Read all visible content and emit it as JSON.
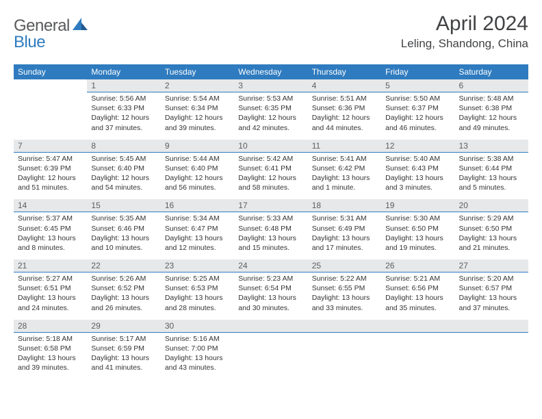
{
  "logo": {
    "general": "General",
    "blue": "Blue"
  },
  "title": "April 2024",
  "location": "Leling, Shandong, China",
  "dow": [
    "Sunday",
    "Monday",
    "Tuesday",
    "Wednesday",
    "Thursday",
    "Friday",
    "Saturday"
  ],
  "colors": {
    "header_bg": "#2f7bbf",
    "header_text": "#ffffff",
    "daybar_bg": "#e7e8e9",
    "daybar_border": "#2f7bbf",
    "body_text": "#333333",
    "title_text": "#414244",
    "logo_gray": "#58595b",
    "logo_blue": "#2f7bbf"
  },
  "weeks": [
    [
      null,
      {
        "n": "1",
        "sr": "Sunrise: 5:56 AM",
        "ss": "Sunset: 6:33 PM",
        "d1": "Daylight: 12 hours",
        "d2": "and 37 minutes."
      },
      {
        "n": "2",
        "sr": "Sunrise: 5:54 AM",
        "ss": "Sunset: 6:34 PM",
        "d1": "Daylight: 12 hours",
        "d2": "and 39 minutes."
      },
      {
        "n": "3",
        "sr": "Sunrise: 5:53 AM",
        "ss": "Sunset: 6:35 PM",
        "d1": "Daylight: 12 hours",
        "d2": "and 42 minutes."
      },
      {
        "n": "4",
        "sr": "Sunrise: 5:51 AM",
        "ss": "Sunset: 6:36 PM",
        "d1": "Daylight: 12 hours",
        "d2": "and 44 minutes."
      },
      {
        "n": "5",
        "sr": "Sunrise: 5:50 AM",
        "ss": "Sunset: 6:37 PM",
        "d1": "Daylight: 12 hours",
        "d2": "and 46 minutes."
      },
      {
        "n": "6",
        "sr": "Sunrise: 5:48 AM",
        "ss": "Sunset: 6:38 PM",
        "d1": "Daylight: 12 hours",
        "d2": "and 49 minutes."
      }
    ],
    [
      {
        "n": "7",
        "sr": "Sunrise: 5:47 AM",
        "ss": "Sunset: 6:39 PM",
        "d1": "Daylight: 12 hours",
        "d2": "and 51 minutes."
      },
      {
        "n": "8",
        "sr": "Sunrise: 5:45 AM",
        "ss": "Sunset: 6:40 PM",
        "d1": "Daylight: 12 hours",
        "d2": "and 54 minutes."
      },
      {
        "n": "9",
        "sr": "Sunrise: 5:44 AM",
        "ss": "Sunset: 6:40 PM",
        "d1": "Daylight: 12 hours",
        "d2": "and 56 minutes."
      },
      {
        "n": "10",
        "sr": "Sunrise: 5:42 AM",
        "ss": "Sunset: 6:41 PM",
        "d1": "Daylight: 12 hours",
        "d2": "and 58 minutes."
      },
      {
        "n": "11",
        "sr": "Sunrise: 5:41 AM",
        "ss": "Sunset: 6:42 PM",
        "d1": "Daylight: 13 hours",
        "d2": "and 1 minute."
      },
      {
        "n": "12",
        "sr": "Sunrise: 5:40 AM",
        "ss": "Sunset: 6:43 PM",
        "d1": "Daylight: 13 hours",
        "d2": "and 3 minutes."
      },
      {
        "n": "13",
        "sr": "Sunrise: 5:38 AM",
        "ss": "Sunset: 6:44 PM",
        "d1": "Daylight: 13 hours",
        "d2": "and 5 minutes."
      }
    ],
    [
      {
        "n": "14",
        "sr": "Sunrise: 5:37 AM",
        "ss": "Sunset: 6:45 PM",
        "d1": "Daylight: 13 hours",
        "d2": "and 8 minutes."
      },
      {
        "n": "15",
        "sr": "Sunrise: 5:35 AM",
        "ss": "Sunset: 6:46 PM",
        "d1": "Daylight: 13 hours",
        "d2": "and 10 minutes."
      },
      {
        "n": "16",
        "sr": "Sunrise: 5:34 AM",
        "ss": "Sunset: 6:47 PM",
        "d1": "Daylight: 13 hours",
        "d2": "and 12 minutes."
      },
      {
        "n": "17",
        "sr": "Sunrise: 5:33 AM",
        "ss": "Sunset: 6:48 PM",
        "d1": "Daylight: 13 hours",
        "d2": "and 15 minutes."
      },
      {
        "n": "18",
        "sr": "Sunrise: 5:31 AM",
        "ss": "Sunset: 6:49 PM",
        "d1": "Daylight: 13 hours",
        "d2": "and 17 minutes."
      },
      {
        "n": "19",
        "sr": "Sunrise: 5:30 AM",
        "ss": "Sunset: 6:50 PM",
        "d1": "Daylight: 13 hours",
        "d2": "and 19 minutes."
      },
      {
        "n": "20",
        "sr": "Sunrise: 5:29 AM",
        "ss": "Sunset: 6:50 PM",
        "d1": "Daylight: 13 hours",
        "d2": "and 21 minutes."
      }
    ],
    [
      {
        "n": "21",
        "sr": "Sunrise: 5:27 AM",
        "ss": "Sunset: 6:51 PM",
        "d1": "Daylight: 13 hours",
        "d2": "and 24 minutes."
      },
      {
        "n": "22",
        "sr": "Sunrise: 5:26 AM",
        "ss": "Sunset: 6:52 PM",
        "d1": "Daylight: 13 hours",
        "d2": "and 26 minutes."
      },
      {
        "n": "23",
        "sr": "Sunrise: 5:25 AM",
        "ss": "Sunset: 6:53 PM",
        "d1": "Daylight: 13 hours",
        "d2": "and 28 minutes."
      },
      {
        "n": "24",
        "sr": "Sunrise: 5:23 AM",
        "ss": "Sunset: 6:54 PM",
        "d1": "Daylight: 13 hours",
        "d2": "and 30 minutes."
      },
      {
        "n": "25",
        "sr": "Sunrise: 5:22 AM",
        "ss": "Sunset: 6:55 PM",
        "d1": "Daylight: 13 hours",
        "d2": "and 33 minutes."
      },
      {
        "n": "26",
        "sr": "Sunrise: 5:21 AM",
        "ss": "Sunset: 6:56 PM",
        "d1": "Daylight: 13 hours",
        "d2": "and 35 minutes."
      },
      {
        "n": "27",
        "sr": "Sunrise: 5:20 AM",
        "ss": "Sunset: 6:57 PM",
        "d1": "Daylight: 13 hours",
        "d2": "and 37 minutes."
      }
    ],
    [
      {
        "n": "28",
        "sr": "Sunrise: 5:18 AM",
        "ss": "Sunset: 6:58 PM",
        "d1": "Daylight: 13 hours",
        "d2": "and 39 minutes."
      },
      {
        "n": "29",
        "sr": "Sunrise: 5:17 AM",
        "ss": "Sunset: 6:59 PM",
        "d1": "Daylight: 13 hours",
        "d2": "and 41 minutes."
      },
      {
        "n": "30",
        "sr": "Sunrise: 5:16 AM",
        "ss": "Sunset: 7:00 PM",
        "d1": "Daylight: 13 hours",
        "d2": "and 43 minutes."
      },
      null,
      null,
      null,
      null
    ]
  ]
}
